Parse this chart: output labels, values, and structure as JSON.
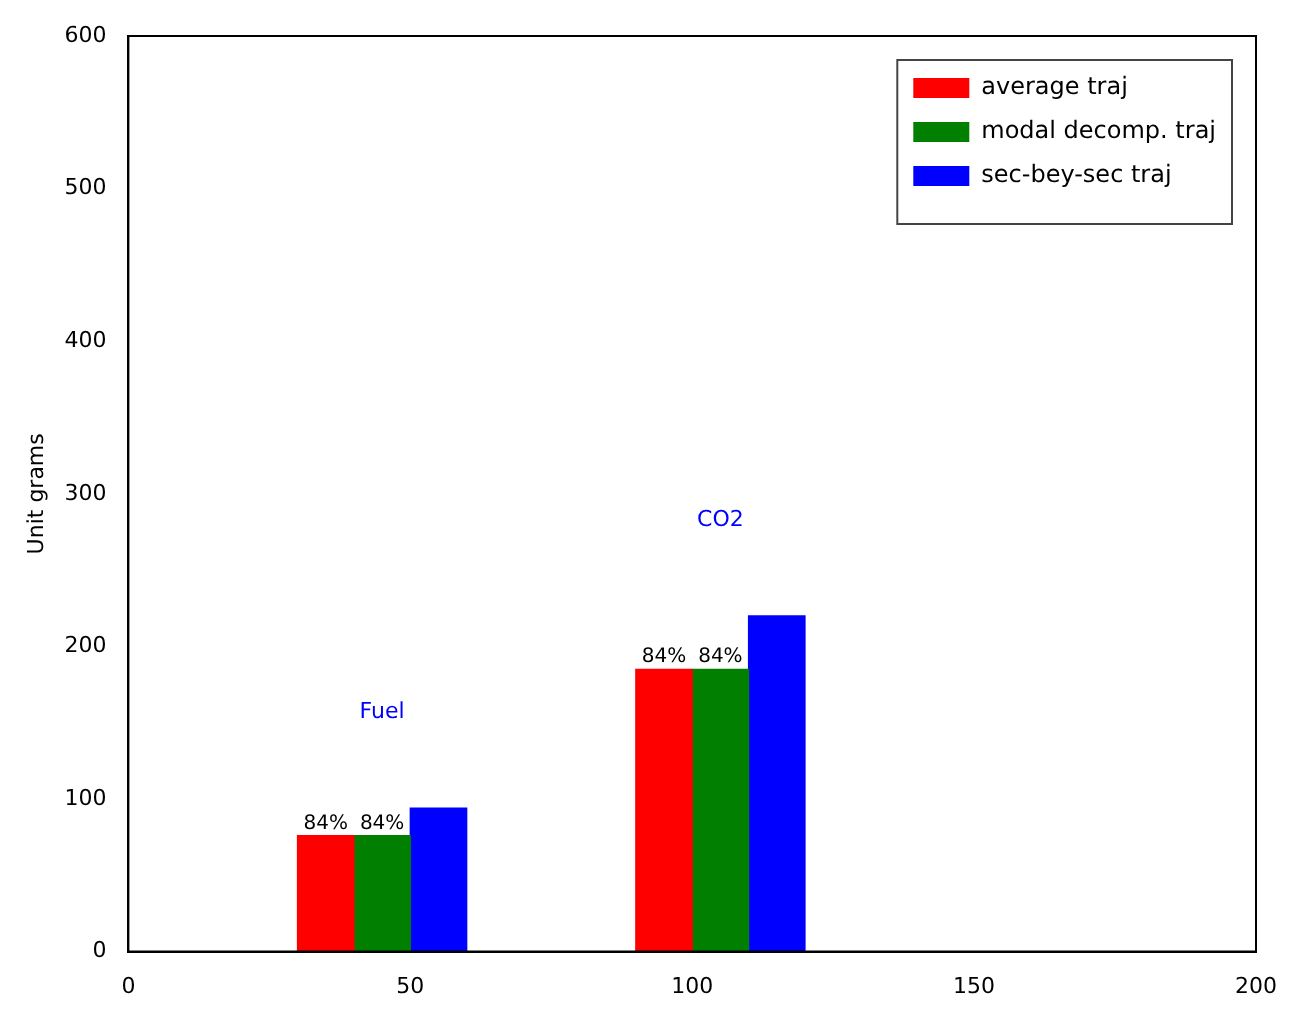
{
  "chart_data": {
    "type": "bar",
    "ylabel": "Unit grams",
    "xlim": [
      0,
      200
    ],
    "xticks": [
      0,
      50,
      100,
      150,
      200
    ],
    "ylim": [
      0,
      600
    ],
    "yticks": [
      0,
      100,
      200,
      300,
      400,
      500,
      600
    ],
    "grid": false,
    "legend": "top right",
    "series": [
      {
        "name": "average traj",
        "color": "#ff0000",
        "x": [
          35,
          95
        ],
        "values": [
          76,
          185
        ]
      },
      {
        "name": "modal decomp. traj",
        "color": "#007f00",
        "x": [
          45,
          105
        ],
        "values": [
          76,
          185
        ]
      },
      {
        "name": "sec-bey-sec traj",
        "color": "#0000ff",
        "x": [
          55,
          115
        ],
        "values": [
          94,
          220
        ]
      }
    ],
    "annotations": [
      "Fuel",
      "CO2",
      {
        "text": "84%",
        "x": 35,
        "y": 76
      },
      {
        "text": "84%",
        "x": 45,
        "y": 76
      },
      {
        "text": "84%",
        "x": 95,
        "y": 185
      },
      {
        "text": "84%",
        "x": 105,
        "y": 185
      }
    ]
  }
}
